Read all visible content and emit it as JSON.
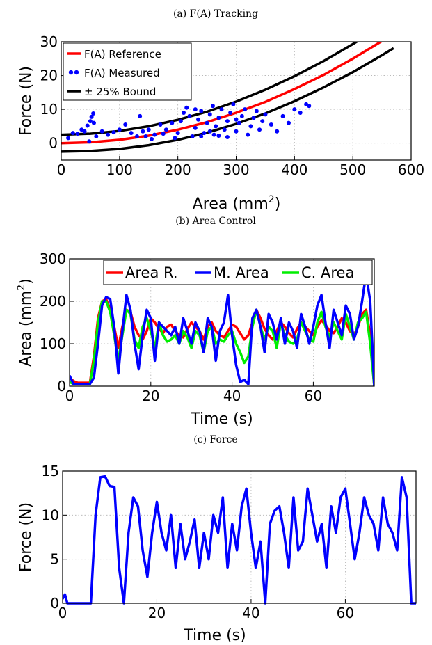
{
  "chart_data": [
    {
      "caption": "(a) F(A) Tracking",
      "type": "scatter",
      "xlabel": "Area (mm",
      "xlabel_sup": "2",
      "xlabel_close": ")",
      "ylabel": "Force (N)",
      "xlim": [
        0,
        600
      ],
      "ylim": [
        -5,
        30
      ],
      "xticks": [
        0,
        100,
        200,
        300,
        400,
        500,
        600
      ],
      "yticks": [
        0,
        10,
        20,
        30
      ],
      "grid": true,
      "legend_position": "top-left",
      "colors": {
        "reference": "#ff0000",
        "measured": "#0000ff",
        "bound": "#000000"
      },
      "legend": [
        "F(A) Reference",
        "F(A) Measured",
        "± 25% Bound"
      ],
      "reference_curve": [
        [
          0,
          0
        ],
        [
          50,
          0.25
        ],
        [
          100,
          1
        ],
        [
          150,
          2.2
        ],
        [
          200,
          4
        ],
        [
          250,
          6.2
        ],
        [
          300,
          9
        ],
        [
          350,
          12.2
        ],
        [
          400,
          16
        ],
        [
          450,
          20.2
        ],
        [
          500,
          25
        ],
        [
          550,
          30.2
        ]
      ],
      "upper_bound": [
        [
          0,
          2.5
        ],
        [
          50,
          2.8
        ],
        [
          100,
          3.6
        ],
        [
          150,
          5
        ],
        [
          200,
          6.9
        ],
        [
          250,
          9.3
        ],
        [
          300,
          12.3
        ],
        [
          350,
          15.8
        ],
        [
          400,
          19.8
        ],
        [
          450,
          24.3
        ],
        [
          500,
          29.3
        ],
        [
          530,
          32.5
        ]
      ],
      "lower_bound": [
        [
          0,
          -2.5
        ],
        [
          50,
          -2.3
        ],
        [
          100,
          -1.7
        ],
        [
          150,
          -0.6
        ],
        [
          200,
          1
        ],
        [
          250,
          3.1
        ],
        [
          300,
          5.7
        ],
        [
          350,
          8.8
        ],
        [
          400,
          12.4
        ],
        [
          450,
          16.5
        ],
        [
          500,
          21
        ],
        [
          550,
          26
        ],
        [
          570,
          28.1
        ]
      ],
      "measured": [
        [
          12,
          1.5
        ],
        [
          20,
          3
        ],
        [
          28,
          2.8
        ],
        [
          35,
          4
        ],
        [
          40,
          3.5
        ],
        [
          45,
          5.2
        ],
        [
          50,
          6.5
        ],
        [
          52,
          7.8
        ],
        [
          55,
          8.8
        ],
        [
          56,
          6
        ],
        [
          48,
          0.5
        ],
        [
          60,
          2
        ],
        [
          70,
          3.5
        ],
        [
          80,
          2.5
        ],
        [
          90,
          3.2
        ],
        [
          100,
          4
        ],
        [
          110,
          5.5
        ],
        [
          120,
          3
        ],
        [
          130,
          2
        ],
        [
          135,
          8
        ],
        [
          140,
          3.5
        ],
        [
          150,
          4
        ],
        [
          160,
          2.5
        ],
        [
          170,
          5.5
        ],
        [
          180,
          4
        ],
        [
          190,
          6
        ],
        [
          200,
          3
        ],
        [
          205,
          6.5
        ],
        [
          210,
          9
        ],
        [
          215,
          10.5
        ],
        [
          220,
          8
        ],
        [
          225,
          2
        ],
        [
          230,
          4.5
        ],
        [
          235,
          7
        ],
        [
          240,
          9.5
        ],
        [
          245,
          3
        ],
        [
          250,
          6
        ],
        [
          255,
          8.5
        ],
        [
          260,
          11
        ],
        [
          262,
          2.5
        ],
        [
          265,
          5
        ],
        [
          270,
          7.5
        ],
        [
          275,
          10
        ],
        [
          280,
          4
        ],
        [
          285,
          6.5
        ],
        [
          290,
          9
        ],
        [
          295,
          11.5
        ],
        [
          300,
          3.5
        ],
        [
          305,
          6
        ],
        [
          310,
          8
        ],
        [
          315,
          10
        ],
        [
          320,
          2.5
        ],
        [
          325,
          5
        ],
        [
          330,
          7.5
        ],
        [
          335,
          9.5
        ],
        [
          340,
          4
        ],
        [
          345,
          6.5
        ],
        [
          350,
          8.5
        ],
        [
          360,
          5.5
        ],
        [
          370,
          3.5
        ],
        [
          380,
          8
        ],
        [
          390,
          6
        ],
        [
          400,
          10
        ],
        [
          410,
          9
        ],
        [
          420,
          11.5
        ],
        [
          425,
          11
        ],
        [
          230,
          10
        ],
        [
          240,
          2
        ],
        [
          255,
          3.5
        ],
        [
          270,
          2.2
        ],
        [
          285,
          1.8
        ],
        [
          300,
          7
        ],
        [
          195,
          1.5
        ],
        [
          175,
          2.8
        ],
        [
          155,
          1.2
        ],
        [
          145,
          2
        ]
      ]
    },
    {
      "caption": "(b) Area Control",
      "type": "line",
      "xlabel": "Time (s)",
      "ylabel": "Area (mm",
      "ylabel_sup": "2",
      "ylabel_close": ")",
      "xlim": [
        0,
        75
      ],
      "ylim": [
        0,
        300
      ],
      "xticks": [
        0,
        20,
        40,
        60
      ],
      "yticks": [
        0,
        100,
        200,
        300
      ],
      "grid": true,
      "legend_position": "top",
      "colors": {
        "ref": "#ff0000",
        "measured": "#0000ff",
        "control": "#00ee00"
      },
      "series": [
        {
          "name": "Area R.",
          "x": [
            0,
            1,
            2,
            3,
            4,
            5,
            6,
            7,
            8,
            9,
            10,
            11,
            12,
            13,
            14,
            15,
            16,
            17,
            18,
            19,
            20,
            21,
            22,
            23,
            24,
            25,
            26,
            27,
            28,
            29,
            30,
            31,
            32,
            33,
            34,
            35,
            36,
            37,
            38,
            39,
            40,
            41,
            42,
            43,
            44,
            45,
            46,
            47,
            48,
            49,
            50,
            51,
            52,
            53,
            54,
            55,
            56,
            57,
            58,
            59,
            60,
            61,
            62,
            63,
            64,
            65,
            66,
            67,
            68,
            69,
            70,
            71,
            72,
            73,
            74,
            75
          ],
          "values": [
            20,
            12,
            8,
            8,
            8,
            8,
            70,
            160,
            200,
            205,
            180,
            140,
            90,
            140,
            180,
            175,
            140,
            120,
            110,
            130,
            160,
            150,
            135,
            125,
            140,
            145,
            130,
            120,
            115,
            135,
            150,
            140,
            130,
            110,
            140,
            150,
            130,
            120,
            115,
            130,
            145,
            140,
            125,
            110,
            120,
            150,
            180,
            160,
            135,
            120,
            110,
            130,
            150,
            140,
            125,
            115,
            135,
            150,
            140,
            130,
            120,
            140,
            155,
            145,
            130,
            125,
            140,
            160,
            150,
            130,
            120,
            140,
            170,
            180,
            120,
            0
          ]
        },
        {
          "name": "M. Area",
          "x": [
            0,
            1,
            2,
            3,
            4,
            5,
            6,
            7,
            8,
            9,
            10,
            11,
            12,
            13,
            14,
            15,
            16,
            17,
            18,
            19,
            20,
            21,
            22,
            23,
            24,
            25,
            26,
            27,
            28,
            29,
            30,
            31,
            32,
            33,
            34,
            35,
            36,
            37,
            38,
            39,
            40,
            41,
            42,
            43,
            44,
            45,
            46,
            47,
            48,
            49,
            50,
            51,
            52,
            53,
            54,
            55,
            56,
            57,
            58,
            59,
            60,
            61,
            62,
            63,
            64,
            65,
            66,
            67,
            68,
            69,
            70,
            71,
            72,
            73,
            74,
            75
          ],
          "values": [
            25,
            5,
            5,
            5,
            5,
            5,
            20,
            100,
            190,
            210,
            205,
            140,
            30,
            130,
            215,
            180,
            100,
            40,
            120,
            180,
            160,
            60,
            150,
            140,
            130,
            120,
            140,
            100,
            160,
            130,
            100,
            150,
            130,
            80,
            160,
            140,
            60,
            130,
            150,
            215,
            120,
            50,
            10,
            15,
            5,
            160,
            180,
            140,
            80,
            170,
            150,
            110,
            160,
            100,
            150,
            130,
            90,
            170,
            140,
            100,
            140,
            190,
            215,
            150,
            90,
            180,
            150,
            120,
            190,
            170,
            110,
            140,
            200,
            265,
            200,
            0
          ]
        },
        {
          "name": "C. Area",
          "x": [
            0,
            1,
            2,
            3,
            4,
            5,
            6,
            7,
            8,
            9,
            10,
            11,
            12,
            13,
            14,
            15,
            16,
            17,
            18,
            19,
            20,
            21,
            22,
            23,
            24,
            25,
            26,
            27,
            28,
            29,
            30,
            31,
            32,
            33,
            34,
            35,
            36,
            37,
            38,
            39,
            40,
            41,
            42,
            43,
            44,
            45,
            46,
            47,
            48,
            49,
            50,
            51,
            52,
            53,
            54,
            55,
            56,
            57,
            58,
            59,
            60,
            61,
            62,
            63,
            64,
            65,
            66,
            67,
            68,
            69,
            70,
            71,
            72,
            73,
            74,
            75
          ],
          "values": [
            10,
            5,
            5,
            5,
            5,
            5,
            60,
            150,
            200,
            200,
            175,
            120,
            60,
            120,
            180,
            170,
            110,
            90,
            140,
            160,
            130,
            90,
            150,
            120,
            105,
            110,
            120,
            100,
            130,
            115,
            90,
            130,
            120,
            80,
            130,
            140,
            100,
            110,
            105,
            120,
            130,
            100,
            80,
            55,
            70,
            140,
            180,
            140,
            110,
            140,
            130,
            90,
            150,
            120,
            105,
            100,
            110,
            150,
            130,
            110,
            105,
            150,
            175,
            140,
            115,
            150,
            130,
            110,
            170,
            140,
            110,
            150,
            160,
            175,
            100,
            0
          ]
        }
      ]
    },
    {
      "caption": "(c) Force",
      "type": "line",
      "xlabel": "Time (s)",
      "ylabel": "Force (N)",
      "xlim": [
        0,
        75
      ],
      "ylim": [
        0,
        15
      ],
      "xticks": [
        0,
        20,
        40,
        60
      ],
      "yticks": [
        0,
        5,
        10,
        15
      ],
      "grid": true,
      "colors": {
        "force": "#0000ff"
      },
      "series": [
        {
          "name": "",
          "x": [
            0,
            0.5,
            1,
            2,
            3,
            4,
            5,
            6,
            7,
            8,
            9,
            10,
            11,
            12,
            13,
            14,
            15,
            16,
            17,
            18,
            19,
            20,
            21,
            22,
            23,
            24,
            25,
            26,
            27,
            28,
            29,
            30,
            31,
            32,
            33,
            34,
            35,
            36,
            37,
            38,
            39,
            40,
            41,
            42,
            43,
            44,
            45,
            46,
            47,
            48,
            49,
            50,
            51,
            52,
            53,
            54,
            55,
            56,
            57,
            58,
            59,
            60,
            61,
            62,
            63,
            64,
            65,
            66,
            67,
            68,
            69,
            70,
            71,
            72,
            73,
            74,
            75
          ],
          "values": [
            0.5,
            1,
            0,
            0,
            0,
            0,
            0,
            0,
            10,
            14.3,
            14.4,
            13.3,
            13.2,
            4,
            0,
            8,
            12,
            11,
            6,
            3,
            8,
            11.5,
            8,
            6,
            10,
            4,
            9,
            5,
            7,
            9.5,
            4,
            8,
            5,
            10,
            8,
            12,
            4,
            9,
            6,
            11,
            13,
            8,
            4,
            7,
            0,
            9,
            10.5,
            11,
            8,
            4,
            12,
            6,
            7,
            13,
            10,
            7,
            9,
            4,
            11,
            8,
            12,
            13,
            9,
            5,
            8,
            12,
            10,
            9,
            6,
            12,
            9,
            8,
            6,
            14.3,
            12,
            0,
            0
          ]
        }
      ]
    }
  ]
}
